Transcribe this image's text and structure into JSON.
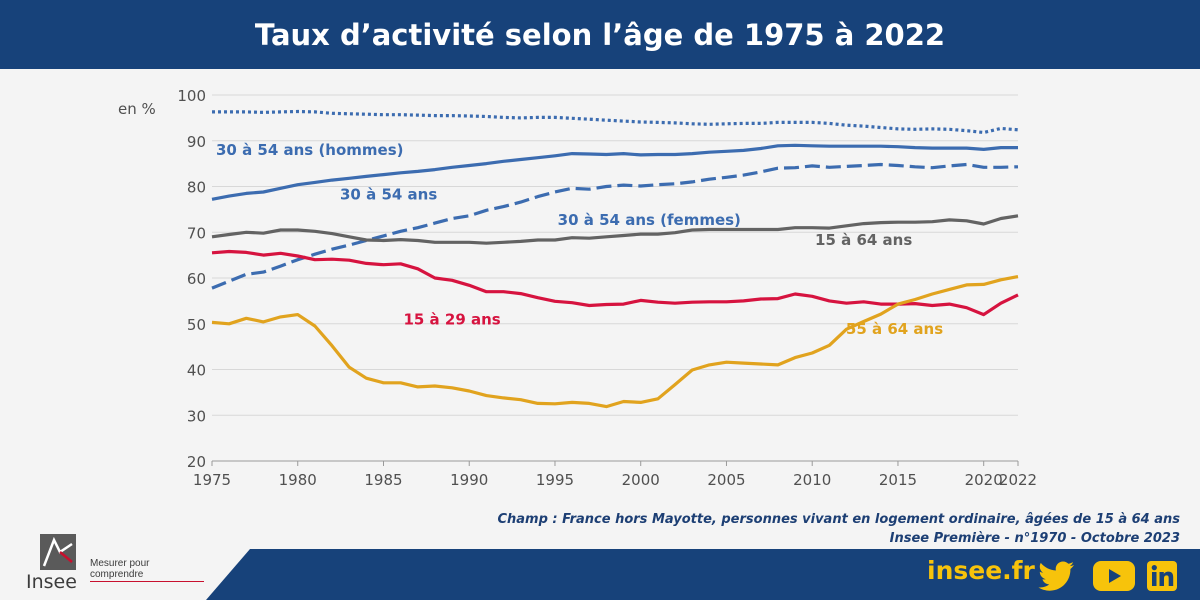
{
  "header": {
    "title": "Taux d’activité selon l’âge de 1975 à 2022"
  },
  "chart_data": {
    "type": "line",
    "title": "Taux d’activité selon l’âge de 1975 à 2022",
    "ylabel": "en %",
    "xlabel": "",
    "ylim": [
      20,
      100
    ],
    "xlim": [
      1975,
      2022
    ],
    "yticks": [
      20,
      30,
      40,
      50,
      60,
      70,
      80,
      90,
      100
    ],
    "xticks": [
      1975,
      1980,
      1985,
      1990,
      1995,
      2000,
      2005,
      2010,
      2015,
      2020,
      2022
    ],
    "grid": true,
    "x": [
      1975,
      1976,
      1977,
      1978,
      1979,
      1980,
      1981,
      1982,
      1983,
      1984,
      1985,
      1986,
      1987,
      1988,
      1989,
      1990,
      1991,
      1992,
      1993,
      1994,
      1995,
      1996,
      1997,
      1998,
      1999,
      2000,
      2001,
      2002,
      2003,
      2004,
      2005,
      2006,
      2007,
      2008,
      2009,
      2010,
      2011,
      2012,
      2013,
      2014,
      2015,
      2016,
      2017,
      2018,
      2019,
      2020,
      2021,
      2022
    ],
    "series": [
      {
        "name": "30 à 54 ans (hommes)",
        "color": "#3c6cb0",
        "dash": "dotted",
        "values": [
          96.3,
          96.3,
          96.3,
          96.2,
          96.3,
          96.4,
          96.3,
          96.0,
          95.9,
          95.8,
          95.7,
          95.7,
          95.6,
          95.5,
          95.5,
          95.4,
          95.3,
          95.1,
          95.0,
          95.1,
          95.1,
          94.9,
          94.7,
          94.5,
          94.3,
          94.1,
          94.0,
          93.9,
          93.7,
          93.6,
          93.7,
          93.8,
          93.8,
          94.0,
          94.0,
          94.0,
          93.8,
          93.4,
          93.2,
          92.9,
          92.6,
          92.5,
          92.6,
          92.5,
          92.2,
          91.8,
          92.7,
          92.4
        ]
      },
      {
        "name": "30 à 54 ans",
        "color": "#3c6cb0",
        "dash": "solid",
        "values": [
          77.2,
          77.9,
          78.5,
          78.8,
          79.6,
          80.4,
          80.9,
          81.4,
          81.8,
          82.2,
          82.6,
          83.0,
          83.3,
          83.7,
          84.2,
          84.6,
          85.0,
          85.5,
          85.9,
          86.3,
          86.7,
          87.2,
          87.1,
          87.0,
          87.2,
          86.9,
          87.0,
          87.0,
          87.2,
          87.5,
          87.7,
          87.9,
          88.3,
          88.9,
          89.0,
          88.9,
          88.8,
          88.8,
          88.8,
          88.8,
          88.7,
          88.5,
          88.4,
          88.4,
          88.4,
          88.1,
          88.5,
          88.5
        ]
      },
      {
        "name": "30 à 54 ans (femmes)",
        "color": "#3c6cb0",
        "dash": "dashed",
        "values": [
          57.8,
          59.3,
          60.8,
          61.3,
          62.6,
          64.0,
          65.2,
          66.3,
          67.2,
          68.2,
          69.2,
          70.2,
          71.0,
          72.0,
          73.0,
          73.6,
          74.8,
          75.6,
          76.6,
          77.8,
          78.8,
          79.6,
          79.4,
          80.0,
          80.3,
          80.1,
          80.4,
          80.6,
          81.0,
          81.6,
          82.0,
          82.5,
          83.2,
          84.0,
          84.1,
          84.5,
          84.2,
          84.4,
          84.6,
          84.8,
          84.6,
          84.3,
          84.1,
          84.5,
          84.8,
          84.2,
          84.2,
          84.3
        ]
      },
      {
        "name": "15 à 64 ans",
        "color": "#636363",
        "dash": "solid",
        "values": [
          69.0,
          69.5,
          70.0,
          69.8,
          70.5,
          70.5,
          70.2,
          69.7,
          69.0,
          68.3,
          68.2,
          68.4,
          68.2,
          67.8,
          67.8,
          67.8,
          67.6,
          67.8,
          68.0,
          68.3,
          68.3,
          68.8,
          68.7,
          69.0,
          69.3,
          69.6,
          69.6,
          69.9,
          70.5,
          70.6,
          70.6,
          70.6,
          70.6,
          70.6,
          71.0,
          71.0,
          70.9,
          71.4,
          71.9,
          72.1,
          72.2,
          72.2,
          72.3,
          72.7,
          72.5,
          71.8,
          73.0,
          73.6
        ]
      },
      {
        "name": "15 à 29 ans",
        "color": "#d6133f",
        "dash": "solid",
        "values": [
          65.5,
          65.8,
          65.6,
          65.0,
          65.4,
          64.8,
          64.0,
          64.1,
          63.9,
          63.2,
          62.9,
          63.1,
          62.0,
          60.0,
          59.5,
          58.4,
          57.0,
          57.0,
          56.6,
          55.7,
          54.9,
          54.6,
          54.0,
          54.2,
          54.3,
          55.1,
          54.7,
          54.5,
          54.7,
          54.8,
          54.8,
          55.0,
          55.4,
          55.5,
          56.5,
          56.0,
          55.0,
          54.5,
          54.8,
          54.3,
          54.3,
          54.4,
          54.0,
          54.3,
          53.5,
          52.0,
          54.5,
          56.3
        ]
      },
      {
        "name": "55 à 64 ans",
        "color": "#e1a31e",
        "dash": "solid",
        "values": [
          50.3,
          50.0,
          51.2,
          50.4,
          51.5,
          52.0,
          49.5,
          45.2,
          40.5,
          38.1,
          37.1,
          37.1,
          36.2,
          36.4,
          36.0,
          35.3,
          34.3,
          33.8,
          33.4,
          32.6,
          32.5,
          32.8,
          32.6,
          31.9,
          33.0,
          32.8,
          33.6,
          36.7,
          39.9,
          41.0,
          41.6,
          41.4,
          41.2,
          41.0,
          42.6,
          43.6,
          45.3,
          48.8,
          50.5,
          52.1,
          54.3,
          55.3,
          56.5,
          57.5,
          58.5,
          58.6,
          59.6,
          60.3
        ]
      }
    ],
    "labels": [
      {
        "text": "30 à 54 ans (hommes)",
        "series": 0,
        "color": "#3c6cb0"
      },
      {
        "text": "30 à 54 ans",
        "series": 1,
        "color": "#3c6cb0"
      },
      {
        "text": "30 à 54 ans (femmes)",
        "series": 2,
        "color": "#3c6cb0"
      },
      {
        "text": "15 à 64 ans",
        "series": 3,
        "color": "#636363"
      },
      {
        "text": "15 à 29 ans",
        "series": 4,
        "color": "#d6133f"
      },
      {
        "text": "55 à 64 ans",
        "series": 5,
        "color": "#e1a31e"
      }
    ]
  },
  "source": {
    "line1": "Champ : France hors Mayotte, personnes vivant en logement ordinaire, âgées de 15 à 64 ans",
    "line2": "Insee Première - n°1970 - Octobre 2023"
  },
  "footer": {
    "site": "insee.fr",
    "logo_text": "Insee",
    "tagline": "Mesurer pour comprendre",
    "brand_color": "#17427a",
    "accent_color": "#f7c30b"
  }
}
